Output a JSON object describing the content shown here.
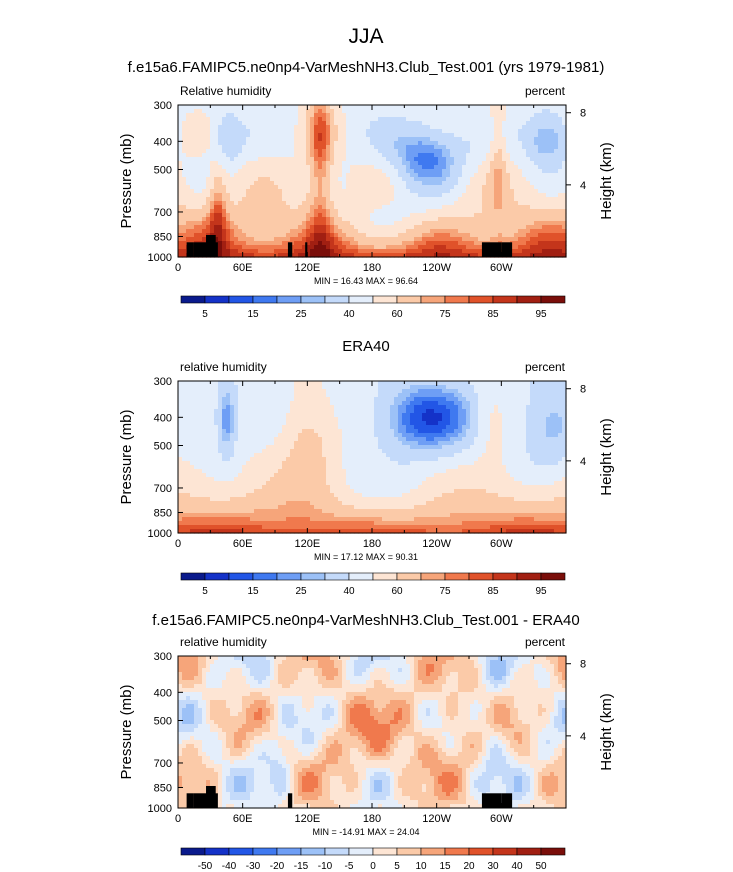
{
  "figure": {
    "title": "JJA"
  },
  "colors": {
    "page": "#ffffff",
    "frame": "#000000",
    "topography": "#000000"
  },
  "chart_data": [
    {
      "type": "heatmap",
      "title": "f.e15a6.FAMIPC5.ne0np4-VarMeshNH3.Club_Test.001 (yrs 1979-1981)",
      "left_label": "Relative humidity",
      "right_label": "percent",
      "ylabel": "Pressure (mb)",
      "ylabel_right": "Height (km)",
      "xticks": [
        "0",
        "60E",
        "120E",
        "180",
        "120W",
        "60W"
      ],
      "xtick_values": [
        0,
        60,
        120,
        180,
        240,
        300
      ],
      "xlim": [
        0,
        360
      ],
      "yticks": [
        "300",
        "400",
        "500",
        "700",
        "850",
        "1000"
      ],
      "ytick_values": [
        300,
        400,
        500,
        700,
        850,
        1000
      ],
      "ylim": [
        1000,
        300
      ],
      "y_scale": "log",
      "right_ticks": [
        "8",
        "4"
      ],
      "right_tick_values": [
        8,
        4
      ],
      "min_max_text": "MIN =  16.43  MAX =  96.64",
      "min": 16.43,
      "max": 96.64,
      "colorbar_labels": [
        "5",
        "15",
        "25",
        "40",
        "60",
        "75",
        "85",
        "95"
      ],
      "colorbar_levels": [
        5,
        10,
        15,
        20,
        25,
        30,
        40,
        50,
        60,
        70,
        75,
        80,
        85,
        90,
        95
      ],
      "colorbar_colors": [
        "#0a1a8c",
        "#1432c8",
        "#2256e6",
        "#3f79f0",
        "#6e9ef5",
        "#9cc1f7",
        "#c4dafa",
        "#e4eefb",
        "#fde5d4",
        "#fbcaa8",
        "#f6a57a",
        "#f0794d",
        "#e0522a",
        "#c4351b",
        "#a11f12",
        "#7a0e0a"
      ],
      "blocks": [
        {
          "lon": [
            8,
            14
          ],
          "p": [
            1000,
            890
          ]
        },
        {
          "lon": [
            14,
            37
          ],
          "p": [
            1000,
            890
          ]
        },
        {
          "lon": [
            26,
            35
          ],
          "p": [
            1000,
            840
          ]
        },
        {
          "lon": [
            102,
            106
          ],
          "p": [
            1000,
            890
          ]
        },
        {
          "lon": [
            118,
            120
          ],
          "p": [
            1000,
            890
          ]
        },
        {
          "lon": [
            282,
            300
          ],
          "p": [
            1000,
            890
          ]
        },
        {
          "lon": [
            300,
            310
          ],
          "p": [
            1000,
            890
          ]
        }
      ]
    },
    {
      "type": "heatmap",
      "title": "ERA40",
      "left_label": "relative humidity",
      "right_label": "percent",
      "ylabel": "Pressure (mb)",
      "ylabel_right": "Height (km)",
      "xticks": [
        "0",
        "60E",
        "120E",
        "180",
        "120W",
        "60W"
      ],
      "xtick_values": [
        0,
        60,
        120,
        180,
        240,
        300
      ],
      "xlim": [
        0,
        360
      ],
      "yticks": [
        "300",
        "400",
        "500",
        "700",
        "850",
        "1000"
      ],
      "ytick_values": [
        300,
        400,
        500,
        700,
        850,
        1000
      ],
      "ylim": [
        1000,
        300
      ],
      "y_scale": "log",
      "right_ticks": [
        "8",
        "4"
      ],
      "right_tick_values": [
        8,
        4
      ],
      "min_max_text": "MIN =  17.12  MAX =  90.31",
      "min": 17.12,
      "max": 90.31,
      "colorbar_labels": [
        "5",
        "15",
        "25",
        "40",
        "60",
        "75",
        "85",
        "95"
      ],
      "colorbar_levels": [
        5,
        10,
        15,
        20,
        25,
        30,
        40,
        50,
        60,
        70,
        75,
        80,
        85,
        90,
        95
      ],
      "colorbar_colors": [
        "#0a1a8c",
        "#1432c8",
        "#2256e6",
        "#3f79f0",
        "#6e9ef5",
        "#9cc1f7",
        "#c4dafa",
        "#e4eefb",
        "#fde5d4",
        "#fbcaa8",
        "#f6a57a",
        "#f0794d",
        "#e0522a",
        "#c4351b",
        "#a11f12",
        "#7a0e0a"
      ],
      "blocks": []
    },
    {
      "type": "heatmap",
      "title": "f.e15a6.FAMIPC5.ne0np4-VarMeshNH3.Club_Test.001 - ERA40",
      "left_label": "relative humidity",
      "right_label": "percent",
      "ylabel": "Pressure (mb)",
      "ylabel_right": "Height (km)",
      "xticks": [
        "0",
        "60E",
        "120E",
        "180",
        "120W",
        "60W"
      ],
      "xtick_values": [
        0,
        60,
        120,
        180,
        240,
        300
      ],
      "xlim": [
        0,
        360
      ],
      "yticks": [
        "300",
        "400",
        "500",
        "700",
        "850",
        "1000"
      ],
      "ytick_values": [
        300,
        400,
        500,
        700,
        850,
        1000
      ],
      "ylim": [
        1000,
        300
      ],
      "y_scale": "log",
      "right_ticks": [
        "8",
        "4"
      ],
      "right_tick_values": [
        8,
        4
      ],
      "min_max_text": "MIN = -14.91  MAX =  24.04",
      "min": -14.91,
      "max": 24.04,
      "colorbar_labels": [
        "-50",
        "-40",
        "-30",
        "-20",
        "-15",
        "-10",
        "-5",
        "0",
        "5",
        "10",
        "15",
        "20",
        "30",
        "40",
        "50"
      ],
      "colorbar_levels": [
        -50,
        -40,
        -30,
        -20,
        -15,
        -10,
        -5,
        0,
        5,
        10,
        15,
        20,
        30,
        40,
        50
      ],
      "colorbar_colors": [
        "#0a1a8c",
        "#1432c8",
        "#2256e6",
        "#3f79f0",
        "#6e9ef5",
        "#9cc1f7",
        "#c4dafa",
        "#e4eefb",
        "#fde5d4",
        "#fbcaa8",
        "#f6a57a",
        "#f0794d",
        "#e0522a",
        "#c4351b",
        "#a11f12",
        "#7a0e0a"
      ],
      "blocks": [
        {
          "lon": [
            8,
            14
          ],
          "p": [
            1000,
            890
          ]
        },
        {
          "lon": [
            14,
            37
          ],
          "p": [
            1000,
            890
          ]
        },
        {
          "lon": [
            26,
            35
          ],
          "p": [
            1000,
            840
          ]
        },
        {
          "lon": [
            102,
            106
          ],
          "p": [
            1000,
            890
          ]
        },
        {
          "lon": [
            282,
            300
          ],
          "p": [
            1000,
            890
          ]
        },
        {
          "lon": [
            300,
            310
          ],
          "p": [
            1000,
            890
          ]
        }
      ]
    }
  ]
}
